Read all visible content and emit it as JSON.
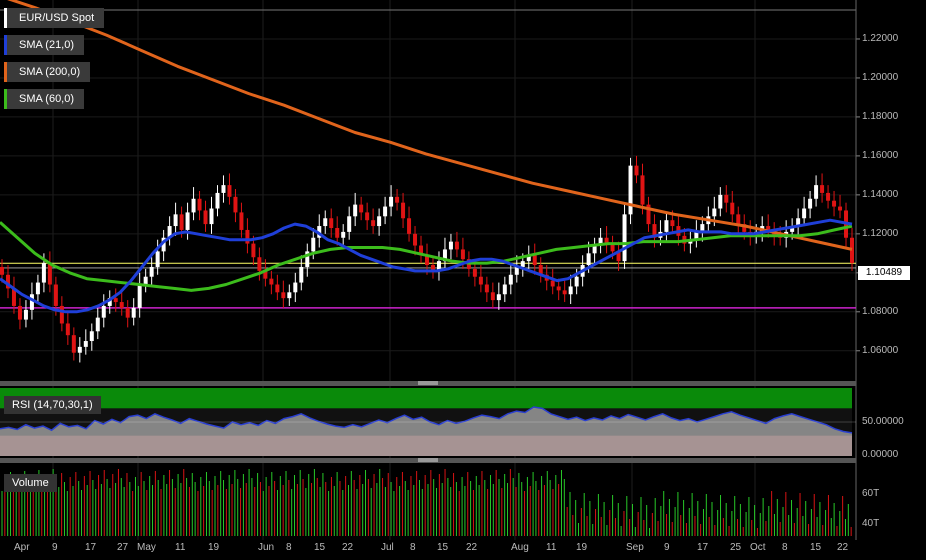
{
  "colors": {
    "up": "#2bd22b",
    "down": "#e01414",
    "sma21": "#1f3fd8",
    "sma200": "#e0641c",
    "sma60": "#3cbc1c",
    "support": "#cc22cc",
    "last": "#ffff66"
  },
  "legend": {
    "symbol": "EUR/USD Spot",
    "sma21": "SMA (21,0)",
    "sma200": "SMA (200,0)",
    "sma60": "SMA (60,0)"
  },
  "rsi": {
    "label": "RSI (14,70,30,1)",
    "ticks": [
      "50.00000",
      "0.00000"
    ]
  },
  "volume": {
    "label": "Volume",
    "ticks": [
      "60T",
      "40T"
    ]
  },
  "price_label": "1.10489",
  "chart_data": {
    "type": "candlestick",
    "ylim": [
      1.045,
      1.24
    ],
    "yticks": [
      "1.22000",
      "1.20000",
      "1.18000",
      "1.16000",
      "1.14000",
      "1.12000",
      "1.10000",
      "1.08000",
      "1.06000"
    ],
    "xticks": [
      "Apr",
      "9",
      "17",
      "27",
      "May",
      "11",
      "19",
      "Jun",
      "8",
      "15",
      "22",
      "Jul",
      "8",
      "15",
      "22",
      "Aug",
      "11",
      "19",
      "Sep",
      "9",
      "17",
      "25",
      "Oct",
      "8",
      "15",
      "22"
    ],
    "close": [
      1.099,
      1.092,
      1.083,
      1.076,
      1.081,
      1.089,
      1.095,
      1.105,
      1.094,
      1.083,
      1.074,
      1.068,
      1.059,
      1.062,
      1.065,
      1.07,
      1.077,
      1.083,
      1.087,
      1.085,
      1.082,
      1.077,
      1.082,
      1.094,
      1.098,
      1.103,
      1.111,
      1.118,
      1.124,
      1.13,
      1.122,
      1.131,
      1.138,
      1.132,
      1.125,
      1.133,
      1.141,
      1.145,
      1.139,
      1.131,
      1.122,
      1.115,
      1.108,
      1.101,
      1.097,
      1.094,
      1.09,
      1.087,
      1.09,
      1.095,
      1.103,
      1.111,
      1.118,
      1.124,
      1.128,
      1.123,
      1.118,
      1.121,
      1.129,
      1.135,
      1.131,
      1.127,
      1.124,
      1.129,
      1.134,
      1.139,
      1.136,
      1.128,
      1.12,
      1.114,
      1.109,
      1.104,
      1.101,
      1.106,
      1.112,
      1.116,
      1.112,
      1.107,
      1.102,
      1.098,
      1.094,
      1.09,
      1.086,
      1.089,
      1.094,
      1.099,
      1.103,
      1.106,
      1.109,
      1.104,
      1.099,
      1.096,
      1.093,
      1.091,
      1.089,
      1.093,
      1.098,
      1.104,
      1.11,
      1.114,
      1.118,
      1.115,
      1.111,
      1.106,
      1.13,
      1.155,
      1.15,
      1.135,
      1.125,
      1.118,
      1.121,
      1.127,
      1.124,
      1.119,
      1.115,
      1.117,
      1.121,
      1.125,
      1.129,
      1.133,
      1.14,
      1.136,
      1.13,
      1.125,
      1.121,
      1.119,
      1.121,
      1.124,
      1.122,
      1.119,
      1.118,
      1.121,
      1.124,
      1.128,
      1.133,
      1.138,
      1.145,
      1.141,
      1.137,
      1.134,
      1.132,
      1.118,
      1.105
    ],
    "sma21": [
      1.097,
      1.093,
      1.089,
      1.086,
      1.083,
      1.081,
      1.08,
      1.08,
      1.081,
      1.083,
      1.086,
      1.09,
      1.096,
      1.103,
      1.11,
      1.116,
      1.12,
      1.121,
      1.12,
      1.119,
      1.118,
      1.117,
      1.117,
      1.117,
      1.118,
      1.12,
      1.123,
      1.125,
      1.124,
      1.121,
      1.117,
      1.115,
      1.112,
      1.109,
      1.107,
      1.105,
      1.103,
      1.102,
      1.101,
      1.101,
      1.101,
      1.102,
      1.104,
      1.106,
      1.107,
      1.107,
      1.106,
      1.104,
      1.102,
      1.1,
      1.098,
      1.096,
      1.097,
      1.1,
      1.103,
      1.106,
      1.109,
      1.112,
      1.115,
      1.118,
      1.119,
      1.12,
      1.121,
      1.122,
      1.121,
      1.121,
      1.121,
      1.12,
      1.12,
      1.12,
      1.121,
      1.122,
      1.123,
      1.124,
      1.125,
      1.126,
      1.127,
      1.126,
      1.125
    ],
    "sma60": [
      1.126,
      1.118,
      1.11,
      1.104,
      1.1,
      1.097,
      1.096,
      1.095,
      1.094,
      1.093,
      1.092,
      1.091,
      1.092,
      1.094,
      1.097,
      1.1,
      1.104,
      1.107,
      1.11,
      1.112,
      1.113,
      1.113,
      1.113,
      1.112,
      1.11,
      1.108,
      1.106,
      1.105,
      1.105,
      1.106,
      1.108,
      1.11,
      1.112,
      1.113,
      1.114,
      1.115,
      1.115,
      1.116,
      1.116,
      1.116,
      1.117,
      1.118,
      1.119,
      1.119,
      1.119,
      1.119,
      1.119,
      1.12,
      1.122,
      1.124
    ],
    "sma200": [
      1.242,
      1.236,
      1.229,
      1.222,
      1.214,
      1.206,
      1.199,
      1.192,
      1.186,
      1.179,
      1.172,
      1.167,
      1.161,
      1.156,
      1.151,
      1.146,
      1.142,
      1.138,
      1.134,
      1.13,
      1.127,
      1.124,
      1.12,
      1.116,
      1.112
    ],
    "support": 1.082,
    "last": 1.1049,
    "rsi_values": [
      40,
      42,
      39,
      46,
      41,
      44,
      38,
      48,
      43,
      45,
      40,
      52,
      47,
      54,
      49,
      58,
      60,
      55,
      62,
      57,
      53,
      48,
      55,
      51,
      47,
      44,
      41,
      50,
      46,
      49,
      45,
      52,
      48,
      55,
      58,
      62,
      56,
      51,
      47,
      44,
      42,
      46,
      43,
      48,
      53,
      49,
      55,
      60,
      54,
      57,
      50,
      46,
      52,
      48,
      51,
      56,
      60,
      58,
      55,
      62,
      66,
      64,
      72,
      70,
      62,
      58,
      54,
      57,
      52,
      56,
      53,
      59,
      55,
      61,
      57,
      53,
      58,
      62,
      56,
      52,
      55,
      50,
      54,
      58,
      62,
      65,
      60,
      56,
      52,
      48,
      55,
      59,
      62,
      58,
      54,
      50,
      46,
      40,
      36,
      34
    ]
  }
}
